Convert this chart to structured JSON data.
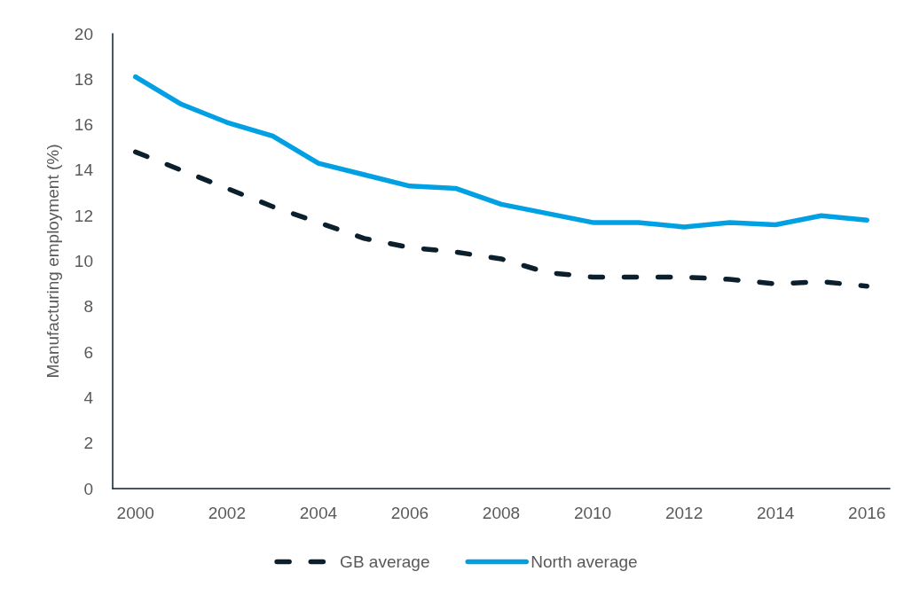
{
  "chart_data": {
    "type": "line",
    "ylabel": "Manufacturing employment (%)",
    "categories": [
      "2000",
      null,
      "2002",
      null,
      "2004",
      null,
      "2006",
      null,
      "2008",
      null,
      "2010",
      null,
      "2012",
      null,
      "2014",
      null,
      "2016"
    ],
    "series": [
      {
        "name": "GB average",
        "color": "#0c1f2c",
        "line_style": "dashed",
        "values": [
          14.8,
          14.0,
          13.2,
          12.4,
          11.7,
          11.0,
          10.6,
          10.4,
          10.1,
          9.5,
          9.3,
          9.3,
          9.3,
          9.2,
          9.0,
          9.1,
          8.9
        ]
      },
      {
        "name": "North average",
        "color": "#00a0e3",
        "line_style": "solid",
        "values": [
          18.1,
          16.9,
          16.1,
          15.5,
          14.3,
          13.8,
          13.3,
          13.2,
          12.5,
          12.1,
          11.7,
          11.7,
          11.5,
          11.7,
          11.6,
          12.0,
          11.8
        ]
      }
    ],
    "ylim": [
      0,
      20
    ],
    "yticks": [
      0,
      2,
      4,
      6,
      8,
      10,
      12,
      14,
      16,
      18,
      20
    ],
    "grid": false,
    "legend": "bottom",
    "marker": "none"
  }
}
